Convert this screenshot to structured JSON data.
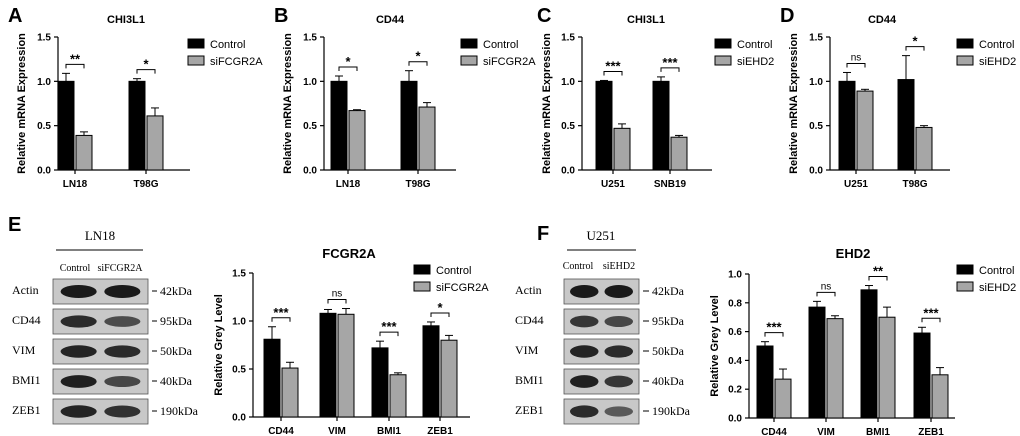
{
  "figure": {
    "colors": {
      "control": "#000000",
      "treated": "#a6a6a6",
      "blot_bg": "#c8c8c8",
      "band": "#1a1a1a"
    },
    "wb_panels": [
      {
        "letter": "E",
        "cell_line": "LN18",
        "lanes": [
          "Control",
          "siFCGR2A"
        ],
        "proteins": [
          {
            "name": "Actin",
            "kda": "42kDa",
            "band_intensity": [
              1.0,
              1.0
            ]
          },
          {
            "name": "CD44",
            "kda": "95kDa",
            "band_intensity": [
              0.85,
              0.55
            ]
          },
          {
            "name": "VIM",
            "kda": "50kDa",
            "band_intensity": [
              0.9,
              0.85
            ]
          },
          {
            "name": "BMI1",
            "kda": "40kDa",
            "band_intensity": [
              0.95,
              0.6
            ]
          },
          {
            "name": "ZEB1",
            "kda": "190kDa",
            "band_intensity": [
              0.9,
              0.8
            ]
          }
        ]
      },
      {
        "letter": "F",
        "cell_line": "U251",
        "lanes": [
          "Control",
          "siEHD2"
        ],
        "proteins": [
          {
            "name": "Actin",
            "kda": "42kDa",
            "band_intensity": [
              1.0,
              1.0
            ]
          },
          {
            "name": "CD44",
            "kda": "95kDa",
            "band_intensity": [
              0.75,
              0.6
            ]
          },
          {
            "name": "VIM",
            "kda": "50kDa",
            "band_intensity": [
              0.9,
              0.85
            ]
          },
          {
            "name": "BMI1",
            "kda": "40kDa",
            "band_intensity": [
              0.95,
              0.75
            ]
          },
          {
            "name": "ZEB1",
            "kda": "190kDa",
            "band_intensity": [
              0.85,
              0.45
            ]
          }
        ]
      }
    ]
  },
  "chart_data": [
    {
      "letter": "A",
      "type": "bar",
      "title": "CHI3L1",
      "ylabel": "Relative mRNA Expression",
      "xlabel": "",
      "ylim": [
        0,
        1.5
      ],
      "yticks": [
        "0.0",
        "0.5",
        "1.0",
        "1.5"
      ],
      "categories": [
        "LN18",
        "T98G"
      ],
      "series": [
        {
          "name": "Control",
          "values": [
            1.0,
            1.0
          ],
          "errors": [
            0.09,
            0.03
          ]
        },
        {
          "name": "siFCGR2A",
          "values": [
            0.39,
            0.61
          ],
          "errors": [
            0.04,
            0.09
          ]
        }
      ],
      "significance": [
        "**",
        "*"
      ],
      "legend": "top-right",
      "grid": false
    },
    {
      "letter": "B",
      "type": "bar",
      "title": "CD44",
      "ylabel": "Relative mRNA Expression",
      "xlabel": "",
      "ylim": [
        0,
        1.5
      ],
      "yticks": [
        "0.0",
        "0.5",
        "1.0",
        "1.5"
      ],
      "categories": [
        "LN18",
        "T98G"
      ],
      "series": [
        {
          "name": "Control",
          "values": [
            1.0,
            1.0
          ],
          "errors": [
            0.06,
            0.12
          ]
        },
        {
          "name": "siFCGR2A",
          "values": [
            0.67,
            0.71
          ],
          "errors": [
            0.01,
            0.05
          ]
        }
      ],
      "significance": [
        "*",
        "*"
      ],
      "legend": "top-right",
      "grid": false
    },
    {
      "letter": "C",
      "type": "bar",
      "title": "CHI3L1",
      "ylabel": "Relative mRNA Expression",
      "xlabel": "",
      "ylim": [
        0,
        1.5
      ],
      "yticks": [
        "0.0",
        "0.5",
        "1.0",
        "1.5"
      ],
      "categories": [
        "U251",
        "SNB19"
      ],
      "series": [
        {
          "name": "Control",
          "values": [
            1.0,
            1.0
          ],
          "errors": [
            0.01,
            0.05
          ]
        },
        {
          "name": "siEHD2",
          "values": [
            0.47,
            0.37
          ],
          "errors": [
            0.05,
            0.02
          ]
        }
      ],
      "significance": [
        "***",
        "***"
      ],
      "legend": "top-right",
      "grid": false
    },
    {
      "letter": "D",
      "type": "bar",
      "title": "CD44",
      "ylabel": "Relative mRNA Expression",
      "xlabel": "",
      "ylim": [
        0,
        1.5
      ],
      "yticks": [
        "0.0",
        "0.5",
        "1.0",
        "1.5"
      ],
      "categories": [
        "U251",
        "T98G"
      ],
      "series": [
        {
          "name": "Control",
          "values": [
            1.0,
            1.02
          ],
          "errors": [
            0.1,
            0.27
          ]
        },
        {
          "name": "siEHD2",
          "values": [
            0.89,
            0.48
          ],
          "errors": [
            0.02,
            0.02
          ]
        }
      ],
      "significance": [
        "ns",
        "*"
      ],
      "legend": "top-right",
      "grid": false
    },
    {
      "letter": "",
      "type": "bar",
      "title": "FCGR2A",
      "ylabel": "Relative Grey Level",
      "xlabel": "",
      "ylim": [
        0,
        1.5
      ],
      "yticks": [
        "0.0",
        "0.5",
        "1.0",
        "1.5"
      ],
      "categories": [
        "CD44",
        "VIM",
        "BMI1",
        "ZEB1"
      ],
      "series": [
        {
          "name": "Control",
          "values": [
            0.81,
            1.08,
            0.72,
            0.95
          ],
          "errors": [
            0.13,
            0.04,
            0.07,
            0.04
          ]
        },
        {
          "name": "siFCGR2A",
          "values": [
            0.51,
            1.07,
            0.44,
            0.8
          ],
          "errors": [
            0.06,
            0.06,
            0.02,
            0.05
          ]
        }
      ],
      "significance": [
        "***",
        "ns",
        "***",
        "*"
      ],
      "legend": "top-right",
      "grid": false
    },
    {
      "letter": "",
      "type": "bar",
      "title": "EHD2",
      "ylabel": "Relative Grey Level",
      "xlabel": "",
      "ylim": [
        0,
        1.0
      ],
      "yticks": [
        "0.0",
        "0.2",
        "0.4",
        "0.6",
        "0.8",
        "1.0"
      ],
      "categories": [
        "CD44",
        "VIM",
        "BMI1",
        "ZEB1"
      ],
      "series": [
        {
          "name": "Control",
          "values": [
            0.5,
            0.77,
            0.89,
            0.59
          ],
          "errors": [
            0.03,
            0.04,
            0.03,
            0.04
          ]
        },
        {
          "name": "siEHD2",
          "values": [
            0.27,
            0.69,
            0.7,
            0.3
          ],
          "errors": [
            0.07,
            0.02,
            0.07,
            0.05
          ]
        }
      ],
      "significance": [
        "***",
        "ns",
        "**",
        "***"
      ],
      "legend": "top-right",
      "grid": false
    }
  ]
}
